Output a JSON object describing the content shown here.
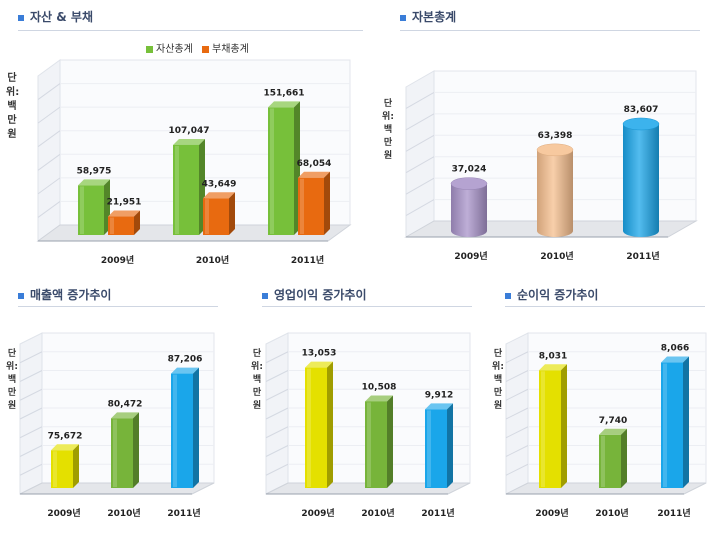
{
  "colors": {
    "green": "#77c03a",
    "orange": "#e86a10",
    "purple": "#a893c9",
    "peach": "#f6bf8e",
    "blue": "#1aa6ea",
    "yellow": "#e4e000",
    "green2": "#77b43a"
  },
  "charts": [
    {
      "id": "c1",
      "title": "자산 & 부채",
      "unit": "단위:백만원",
      "chart_data": {
        "type": "bar",
        "categories": [
          "2009년",
          "2010년",
          "2011년"
        ],
        "series": [
          {
            "name": "자산총계",
            "values": [
              58975,
              107047,
              151661
            ],
            "color": "green"
          },
          {
            "name": "부채총계",
            "values": [
              21951,
              43649,
              68054
            ],
            "color": "orange"
          }
        ],
        "labels": [
          [
            "58,975",
            "107,047",
            "151,661"
          ],
          [
            "21,951",
            "43,649",
            "68,054"
          ]
        ],
        "ylim": [
          0,
          170000
        ]
      }
    },
    {
      "id": "c2",
      "title": "자본총계",
      "unit": "단위:백만원",
      "chart_data": {
        "type": "bar",
        "categories": [
          "2009년",
          "2010년",
          "2011년"
        ],
        "values": [
          37024,
          63398,
          83607
        ],
        "colors": [
          "purple",
          "peach",
          "blue"
        ],
        "labels": [
          "37,024",
          "63,398",
          "83,607"
        ],
        "ylim": [
          0,
          100000
        ]
      }
    },
    {
      "id": "c3",
      "title": "매출액 증가추이",
      "unit": "단위:백만원",
      "chart_data": {
        "type": "bar",
        "categories": [
          "2009년",
          "2010년",
          "2011년"
        ],
        "values": [
          75672,
          80472,
          87206
        ],
        "colors": [
          "yellow",
          "green2",
          "blue"
        ],
        "labels": [
          "75,672",
          "80,472",
          "87,206"
        ],
        "ylim": [
          70000,
          90000
        ]
      }
    },
    {
      "id": "c4",
      "title": "영업이익 증가추이",
      "unit": "단위:백만원",
      "chart_data": {
        "type": "bar",
        "categories": [
          "2009년",
          "2010년",
          "2011년"
        ],
        "values": [
          13053,
          10508,
          9912
        ],
        "colors": [
          "yellow",
          "green2",
          "blue"
        ],
        "labels": [
          "13,053",
          "10,508",
          "9,912"
        ],
        "ylim": [
          4000,
          14000
        ]
      }
    },
    {
      "id": "c5",
      "title": "순이익 증가추이",
      "unit": "단위:백만원",
      "chart_data": {
        "type": "bar",
        "categories": [
          "2009년",
          "2010년",
          "2011년"
        ],
        "values": [
          8031,
          7740,
          8066
        ],
        "colors": [
          "yellow",
          "green2",
          "blue"
        ],
        "labels": [
          "8,031",
          "7,740",
          "8,066"
        ],
        "ylim": [
          7500,
          8100
        ]
      }
    }
  ]
}
